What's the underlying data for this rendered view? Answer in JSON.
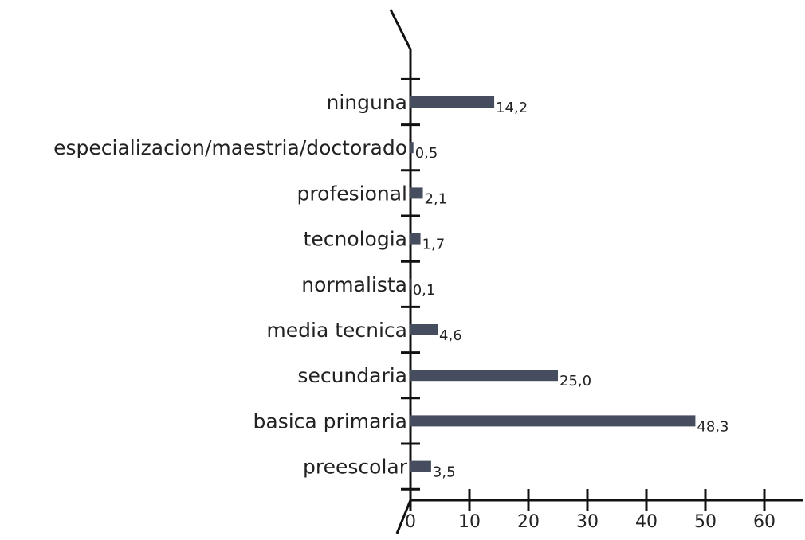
{
  "chart_data": {
    "type": "bar",
    "orientation": "horizontal",
    "categories": [
      "ninguna",
      "especializacion/maestria/doctorado",
      "profesional",
      "tecnologia",
      "normalista",
      "media tecnica",
      "secundaria",
      "basica primaria",
      "preescolar"
    ],
    "values": [
      14.2,
      0.5,
      2.1,
      1.7,
      0.1,
      4.6,
      25.0,
      48.3,
      3.5
    ],
    "value_labels": [
      "14,2",
      "0,5",
      "2,1",
      "1,7",
      "0,1",
      "4,6",
      "25,0",
      "48,3",
      "3,5"
    ],
    "title": "",
    "xlabel": "",
    "ylabel": "",
    "xlim": [
      0,
      60
    ],
    "x_ticks": [
      0,
      10,
      20,
      30,
      40,
      50,
      60
    ],
    "x_tick_labels": [
      "0",
      "10",
      "20",
      "30",
      "40",
      "50",
      "60"
    ],
    "grid": false,
    "legend": "none",
    "bar_color": "#454d5e"
  }
}
